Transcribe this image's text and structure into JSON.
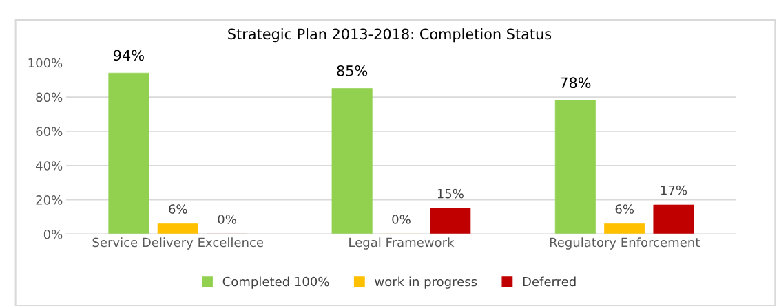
{
  "chart_data": {
    "type": "bar",
    "title": "Strategic Plan 2013-2018: Completion Status",
    "categories": [
      "Service Delivery Excellence",
      "Legal Framework",
      "Regulatory Enforcement"
    ],
    "series": [
      {
        "name": "Completed 100%",
        "color": "#92d050",
        "values": [
          94,
          85,
          78
        ],
        "value_labels": [
          "94%",
          "85%",
          "78%"
        ]
      },
      {
        "name": "work in progress",
        "color": "#ffc000",
        "values": [
          6,
          0,
          6
        ],
        "value_labels": [
          "6%",
          "0%",
          "6%"
        ]
      },
      {
        "name": "Deferred",
        "color": "#c00000",
        "values": [
          0,
          15,
          17
        ],
        "value_labels": [
          "0%",
          "15%",
          "17%"
        ]
      }
    ],
    "ylim": [
      0,
      100
    ],
    "yticks": [
      {
        "value": 0,
        "label": "0%"
      },
      {
        "value": 20,
        "label": "20%"
      },
      {
        "value": 40,
        "label": "40%"
      },
      {
        "value": 60,
        "label": "60%"
      },
      {
        "value": 80,
        "label": "80%"
      },
      {
        "value": 100,
        "label": "100%"
      }
    ],
    "grid": "y",
    "legend": "bottom"
  }
}
